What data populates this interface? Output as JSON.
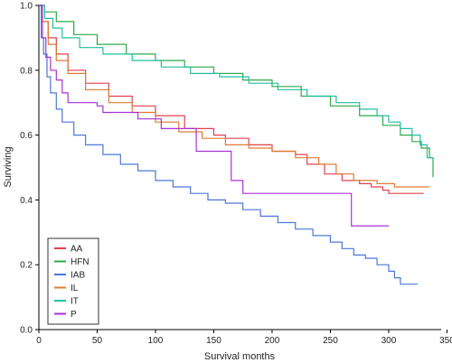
{
  "chart_data": {
    "type": "line",
    "title": "",
    "xlabel": "Survival months",
    "ylabel": "Surviving",
    "xlim": [
      0,
      345
    ],
    "ylim": [
      0,
      1.0
    ],
    "x_ticks": [
      0,
      50,
      100,
      150,
      200,
      250,
      300,
      350
    ],
    "y_ticks": [
      0.0,
      0.2,
      0.4,
      0.6,
      0.8,
      1.0
    ],
    "x_tick_labels": [
      "0",
      "50",
      "100",
      "150",
      "200",
      "250",
      "300",
      "350"
    ],
    "y_tick_labels": [
      "0.0",
      "0.2",
      "0.4",
      "0.6",
      "0.8",
      "1.0"
    ],
    "grid": false,
    "legend_position": "bottom-left",
    "series": [
      {
        "name": "AA",
        "color": "#e0404f",
        "points": [
          [
            0,
            1.0
          ],
          [
            3,
            0.95
          ],
          [
            8,
            0.9
          ],
          [
            15,
            0.85
          ],
          [
            25,
            0.8
          ],
          [
            40,
            0.76
          ],
          [
            60,
            0.72
          ],
          [
            80,
            0.69
          ],
          [
            100,
            0.66
          ],
          [
            125,
            0.62
          ],
          [
            150,
            0.6
          ],
          [
            160,
            0.59
          ],
          [
            180,
            0.57
          ],
          [
            200,
            0.55
          ],
          [
            220,
            0.54
          ],
          [
            230,
            0.51
          ],
          [
            245,
            0.48
          ],
          [
            260,
            0.46
          ],
          [
            275,
            0.45
          ],
          [
            285,
            0.44
          ],
          [
            295,
            0.43
          ],
          [
            300,
            0.42
          ],
          [
            308,
            0.42
          ],
          [
            315,
            0.42
          ],
          [
            320,
            0.42
          ],
          [
            330,
            0.42
          ]
        ]
      },
      {
        "name": "HFN",
        "color": "#2ea84a",
        "points": [
          [
            0,
            1.0
          ],
          [
            5,
            0.98
          ],
          [
            15,
            0.95
          ],
          [
            30,
            0.91
          ],
          [
            50,
            0.88
          ],
          [
            75,
            0.85
          ],
          [
            100,
            0.83
          ],
          [
            125,
            0.81
          ],
          [
            150,
            0.79
          ],
          [
            175,
            0.77
          ],
          [
            200,
            0.75
          ],
          [
            225,
            0.72
          ],
          [
            250,
            0.69
          ],
          [
            275,
            0.66
          ],
          [
            295,
            0.63
          ],
          [
            310,
            0.6
          ],
          [
            320,
            0.58
          ],
          [
            328,
            0.56
          ],
          [
            335,
            0.53
          ],
          [
            338,
            0.47
          ]
        ]
      },
      {
        "name": "IAB",
        "color": "#4a78d8",
        "points": [
          [
            0,
            1.0
          ],
          [
            2,
            0.9
          ],
          [
            4,
            0.85
          ],
          [
            7,
            0.78
          ],
          [
            10,
            0.73
          ],
          [
            15,
            0.68
          ],
          [
            20,
            0.64
          ],
          [
            30,
            0.6
          ],
          [
            40,
            0.57
          ],
          [
            55,
            0.54
          ],
          [
            70,
            0.51
          ],
          [
            85,
            0.49
          ],
          [
            100,
            0.46
          ],
          [
            115,
            0.44
          ],
          [
            130,
            0.42
          ],
          [
            145,
            0.4
          ],
          [
            160,
            0.39
          ],
          [
            175,
            0.37
          ],
          [
            190,
            0.35
          ],
          [
            205,
            0.33
          ],
          [
            220,
            0.31
          ],
          [
            235,
            0.29
          ],
          [
            250,
            0.27
          ],
          [
            260,
            0.25
          ],
          [
            270,
            0.23
          ],
          [
            280,
            0.22
          ],
          [
            290,
            0.2
          ],
          [
            300,
            0.18
          ],
          [
            305,
            0.16
          ],
          [
            310,
            0.14
          ],
          [
            325,
            0.14
          ]
        ]
      },
      {
        "name": "IL",
        "color": "#e07a30",
        "points": [
          [
            0,
            1.0
          ],
          [
            3,
            0.95
          ],
          [
            8,
            0.88
          ],
          [
            15,
            0.83
          ],
          [
            25,
            0.79
          ],
          [
            40,
            0.74
          ],
          [
            60,
            0.7
          ],
          [
            80,
            0.67
          ],
          [
            100,
            0.64
          ],
          [
            120,
            0.61
          ],
          [
            140,
            0.59
          ],
          [
            160,
            0.57
          ],
          [
            180,
            0.56
          ],
          [
            200,
            0.55
          ],
          [
            220,
            0.53
          ],
          [
            240,
            0.51
          ],
          [
            255,
            0.48
          ],
          [
            270,
            0.46
          ],
          [
            290,
            0.45
          ],
          [
            305,
            0.44
          ],
          [
            315,
            0.44
          ],
          [
            335,
            0.44
          ]
        ]
      },
      {
        "name": "IT",
        "color": "#1fbfa0",
        "points": [
          [
            0,
            1.0
          ],
          [
            5,
            0.96
          ],
          [
            12,
            0.93
          ],
          [
            20,
            0.9
          ],
          [
            35,
            0.87
          ],
          [
            55,
            0.85
          ],
          [
            80,
            0.83
          ],
          [
            105,
            0.81
          ],
          [
            130,
            0.79
          ],
          [
            155,
            0.78
          ],
          [
            180,
            0.76
          ],
          [
            205,
            0.74
          ],
          [
            230,
            0.72
          ],
          [
            255,
            0.7
          ],
          [
            275,
            0.68
          ],
          [
            290,
            0.66
          ],
          [
            300,
            0.64
          ],
          [
            310,
            0.62
          ],
          [
            320,
            0.6
          ],
          [
            327,
            0.57
          ],
          [
            333,
            0.53
          ],
          [
            338,
            0.52
          ]
        ]
      },
      {
        "name": "P",
        "color": "#a832d8",
        "points": [
          [
            0,
            1.0
          ],
          [
            3,
            0.9
          ],
          [
            6,
            0.84
          ],
          [
            10,
            0.8
          ],
          [
            15,
            0.77
          ],
          [
            20,
            0.73
          ],
          [
            25,
            0.7
          ],
          [
            45,
            0.7
          ],
          [
            50,
            0.69
          ],
          [
            55,
            0.67
          ],
          [
            80,
            0.67
          ],
          [
            85,
            0.65
          ],
          [
            100,
            0.65
          ],
          [
            105,
            0.62
          ],
          [
            130,
            0.62
          ],
          [
            135,
            0.55
          ],
          [
            160,
            0.55
          ],
          [
            165,
            0.46
          ],
          [
            172,
            0.46
          ],
          [
            175,
            0.42
          ],
          [
            265,
            0.42
          ],
          [
            268,
            0.32
          ],
          [
            300,
            0.32
          ]
        ]
      }
    ]
  }
}
